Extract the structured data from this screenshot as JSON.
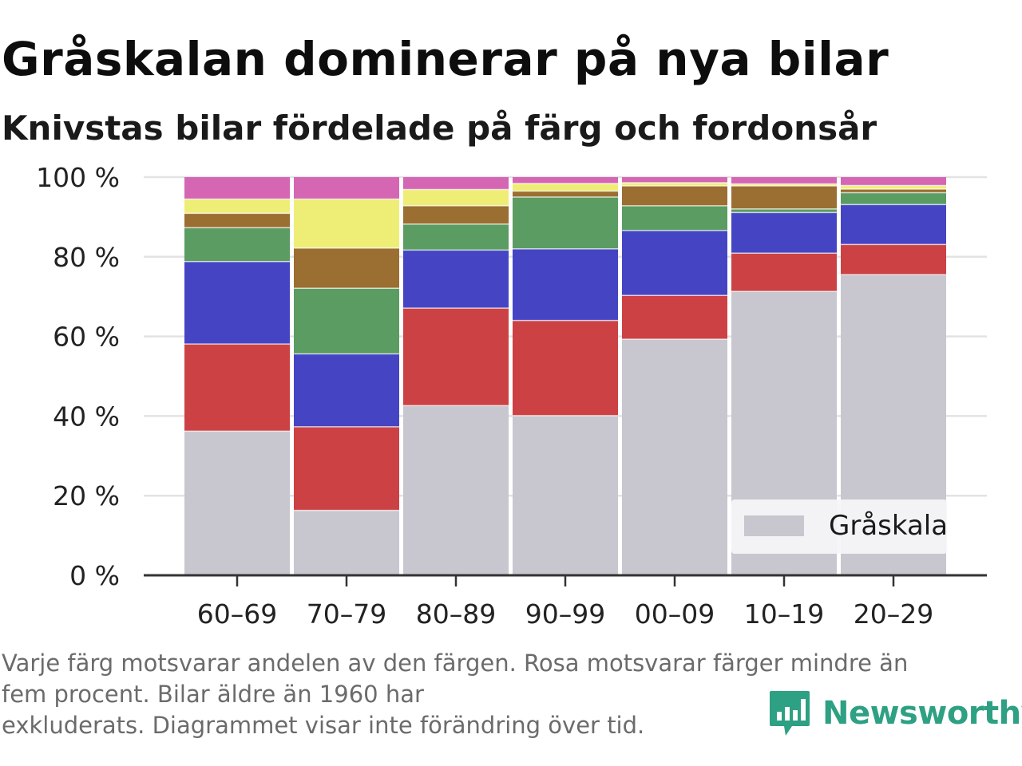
{
  "title": "Gråskalan dominerar på nya bilar",
  "subtitle": "Knivstas bilar fördelade på färg och fordonsår",
  "footnote": [
    "Varje färg motsvarar andelen av den färgen. Rosa motsvarar färger mindre än",
    "fem procent. Bilar äldre än 1960 har",
    "exkluderats. Diagrammet visar inte förändring över tid."
  ],
  "brand": {
    "name": "Newsworthy",
    "icon": "bar-chart-logo-icon",
    "color": "#2ea083"
  },
  "chart_data": {
    "type": "bar",
    "stacked": true,
    "categories": [
      "60–69",
      "70–79",
      "80–89",
      "90–99",
      "00–09",
      "10–19",
      "20–29"
    ],
    "yticks": [
      "0 %",
      "20 %",
      "40 %",
      "60 %",
      "80 %",
      "100 %"
    ],
    "ylim": [
      0,
      100
    ],
    "grid": true,
    "legend_placement": "bottom-right",
    "series": [
      {
        "name": "Gråskala",
        "color": "#c8c7d0",
        "values": [
          36.2,
          16.3,
          42.6,
          40.1,
          59.3,
          71.3,
          75.5
        ]
      },
      {
        "color": "#cc4244",
        "values": [
          21.9,
          21.0,
          24.5,
          23.9,
          11.0,
          9.6,
          7.6
        ]
      },
      {
        "color": "#4545c4",
        "values": [
          20.7,
          18.3,
          14.6,
          18.0,
          16.3,
          10.2,
          10.0
        ]
      },
      {
        "color": "#5b9c62",
        "values": [
          8.5,
          16.5,
          6.5,
          13.0,
          6.2,
          0.9,
          3.0
        ]
      },
      {
        "color": "#9b6e32",
        "values": [
          3.6,
          10.1,
          4.6,
          1.5,
          5.0,
          5.8,
          0.9
        ]
      },
      {
        "color": "#eeee77",
        "values": [
          3.6,
          12.3,
          4.1,
          1.9,
          0.8,
          0.5,
          0.9
        ]
      },
      {
        "color": "#d566b3",
        "values": [
          5.5,
          5.5,
          3.1,
          1.6,
          1.4,
          1.7,
          2.1
        ]
      }
    ]
  }
}
